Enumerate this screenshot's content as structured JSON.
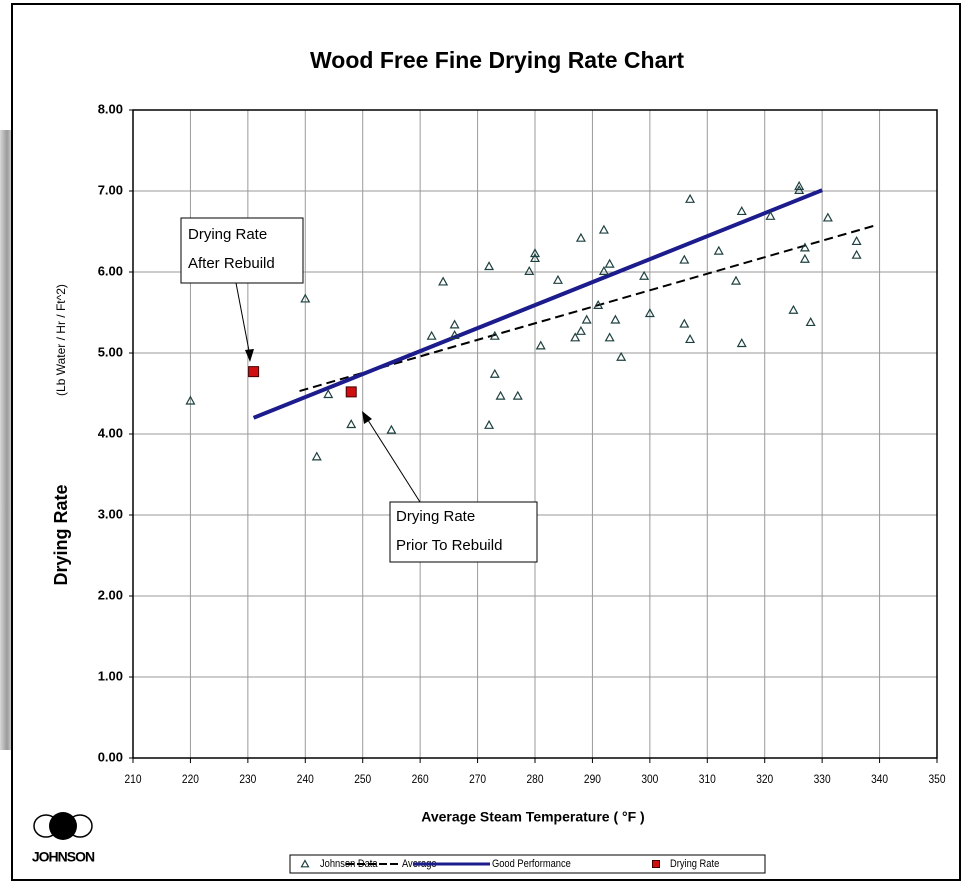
{
  "chart_data": {
    "type": "scatter",
    "title": "Wood Free Fine Drying Rate Chart",
    "xlabel": "Average Steam Temperature ( °F )",
    "ylabel": "Drying Rate",
    "ylabel_units": "(Lb Water / Hr / Ft^2)",
    "logo_text": "JOHNSON",
    "xlim": [
      210,
      350
    ],
    "xticks": [
      210,
      220,
      230,
      240,
      250,
      260,
      270,
      280,
      290,
      300,
      310,
      320,
      330,
      340,
      350
    ],
    "ylim": [
      0,
      8
    ],
    "yticks": [
      {
        "value": 0,
        "label": "0.00"
      },
      {
        "value": 1,
        "label": "1.00"
      },
      {
        "value": 2,
        "label": "2.00"
      },
      {
        "value": 3,
        "label": "3.00"
      },
      {
        "value": 4,
        "label": "4.00"
      },
      {
        "value": 5,
        "label": "5.00"
      },
      {
        "value": 6,
        "label": "6.00"
      },
      {
        "value": 7,
        "label": "7.00"
      },
      {
        "value": 8,
        "label": "8.00"
      }
    ],
    "grid": true,
    "legend": "bottom",
    "series": [
      {
        "name": "Johnson Data",
        "color": "#1e4040",
        "marker": "triangle",
        "x": [
          220,
          240,
          242,
          244,
          248,
          255,
          262,
          264,
          266,
          266,
          272,
          272,
          273,
          273,
          274,
          277,
          279,
          280,
          280,
          281,
          284,
          287,
          288,
          288,
          289,
          291,
          292,
          292,
          293,
          293,
          294,
          295,
          299,
          300,
          306,
          306,
          307,
          307,
          312,
          315,
          316,
          316,
          321,
          325,
          326,
          326,
          327,
          327,
          328,
          331,
          336,
          336
        ],
        "values": [
          4.41,
          5.67,
          3.72,
          4.49,
          4.12,
          4.05,
          5.21,
          5.88,
          5.35,
          5.22,
          6.07,
          4.11,
          5.21,
          4.74,
          4.47,
          4.47,
          6.01,
          6.23,
          6.17,
          5.09,
          5.9,
          5.19,
          6.42,
          5.27,
          5.41,
          5.59,
          6.52,
          6.01,
          6.1,
          5.19,
          5.41,
          4.95,
          5.95,
          5.49,
          5.36,
          6.15,
          6.9,
          5.17,
          6.26,
          5.89,
          6.75,
          5.12,
          6.69,
          5.53,
          7.06,
          7.01,
          6.3,
          6.16,
          5.38,
          6.67,
          6.38,
          6.21
        ]
      },
      {
        "name": "Average",
        "color": "#000000",
        "style": "dashed",
        "x": [
          239,
          339
        ],
        "values": [
          4.53,
          6.57
        ]
      },
      {
        "name": "Good Performance",
        "color": "#1c1c8c",
        "style": "solid",
        "x": [
          231,
          330
        ],
        "values": [
          4.2,
          7.01
        ]
      },
      {
        "name": "Drying Rate",
        "color": "#d01010",
        "marker": "square",
        "x": [
          231,
          248
        ],
        "values": [
          4.77,
          4.52
        ]
      }
    ],
    "annotations": [
      {
        "lines": [
          "Drying Rate",
          "After Rebuild"
        ]
      },
      {
        "lines": [
          "Drying Rate",
          "Prior To Rebuild"
        ]
      }
    ]
  }
}
